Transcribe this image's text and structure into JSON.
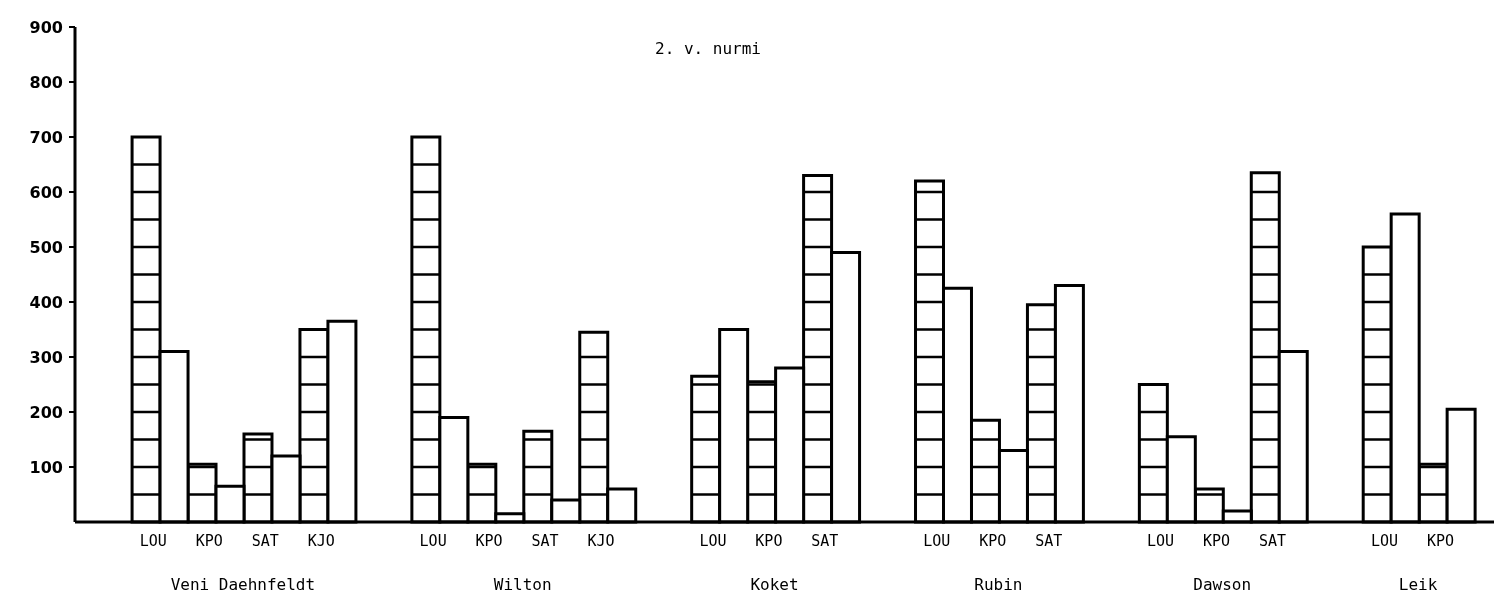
{
  "chart_data": {
    "type": "bar",
    "title": "2. v. nurmi",
    "categories": [
      null,
      "LOU",
      "KPO",
      "SAT",
      "KJO",
      null,
      "LOU",
      "KPO",
      "SAT",
      "KJO",
      null,
      "LOU",
      "KPO",
      "SAT",
      null,
      "LOU",
      "KPO",
      "SAT",
      null,
      "LOU",
      "KPO",
      "SAT",
      null,
      "LOU",
      "KPO"
    ],
    "series": [
      {
        "color": "#ffffff",
        "values": [
          null,
          700,
          105,
          160,
          350,
          null,
          700,
          105,
          165,
          345,
          null,
          265,
          255,
          630,
          null,
          620,
          185,
          395,
          null,
          250,
          60,
          635,
          null,
          500,
          105
        ]
      },
      {
        "color": "#ffffff",
        "values": [
          null,
          310,
          65,
          120,
          365,
          null,
          190,
          15,
          40,
          60,
          null,
          350,
          280,
          490,
          null,
          425,
          130,
          430,
          null,
          155,
          20,
          310,
          null,
          560,
          205
        ]
      }
    ],
    "annotations": [
      "Veni Daehnfeldt",
      "Wilton",
      "Koket",
      "Rubin",
      "Dawson",
      "Leik"
    ],
    "ylim": [
      0,
      900
    ],
    "yticks": [
      100,
      200,
      300,
      400,
      500,
      600,
      700,
      800,
      900
    ],
    "grid": false
  }
}
